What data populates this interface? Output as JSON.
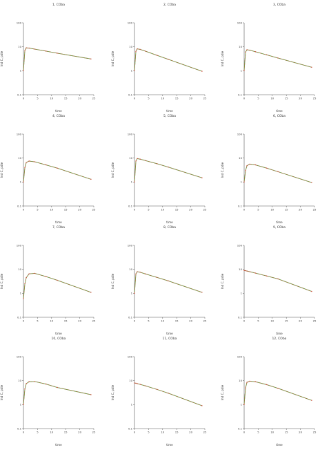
{
  "chart_data": [
    {
      "type": "line",
      "title": "1, COba",
      "xlabel": "time",
      "ylabel": "Ind C, pdie",
      "xticks": [
        "0",
        "5",
        "10",
        "15",
        "20",
        "25"
      ],
      "yticks": [
        "0.1",
        "1",
        "10",
        "100"
      ],
      "xlim": [
        0,
        25
      ],
      "ylim_log": [
        0.1,
        100
      ],
      "y_scale": "log",
      "series": [
        {
          "x": [
            0,
            0.5,
            1,
            2,
            4,
            8,
            12,
            24
          ],
          "y": [
            1.0,
            7.0,
            9.0,
            8.8,
            8.0,
            6.6,
            5.4,
            3.1
          ]
        }
      ]
    },
    {
      "type": "line",
      "title": "2, COba",
      "xlabel": "time",
      "ylabel": "Ind C, pdie",
      "xticks": [
        "0",
        "5",
        "10",
        "15",
        "20",
        "25"
      ],
      "yticks": [
        "0.1",
        "1",
        "10",
        "100"
      ],
      "xlim": [
        0,
        25
      ],
      "ylim_log": [
        0.1,
        100
      ],
      "y_scale": "log",
      "series": [
        {
          "x": [
            0,
            0.5,
            1,
            2,
            4,
            8,
            12,
            24
          ],
          "y": [
            1.0,
            6.5,
            8.2,
            7.8,
            6.5,
            4.4,
            3.0,
            0.95
          ]
        }
      ]
    },
    {
      "type": "line",
      "title": "3, COba",
      "xlabel": "time",
      "ylabel": "Ind C, pdie",
      "xticks": [
        "0",
        "5",
        "10",
        "15",
        "20",
        "25"
      ],
      "yticks": [
        "0.1",
        "1",
        "10",
        "100"
      ],
      "xlim": [
        0,
        25
      ],
      "ylim_log": [
        0.1,
        100
      ],
      "y_scale": "log",
      "series": [
        {
          "x": [
            0,
            0.5,
            1,
            2,
            4,
            8,
            12,
            24
          ],
          "y": [
            1.0,
            6.0,
            7.5,
            7.2,
            6.2,
            4.6,
            3.4,
            1.4
          ]
        }
      ]
    },
    {
      "type": "line",
      "title": "4, COba",
      "xlabel": "time",
      "ylabel": "Ind C, pdie",
      "xticks": [
        "0",
        "5",
        "10",
        "15",
        "20",
        "25"
      ],
      "yticks": [
        "0.1",
        "1",
        "10",
        "100"
      ],
      "xlim": [
        0,
        25
      ],
      "ylim_log": [
        0.1,
        100
      ],
      "y_scale": "log",
      "series": [
        {
          "x": [
            0,
            0.5,
            1,
            2,
            4,
            8,
            12,
            24
          ],
          "y": [
            1.0,
            4.0,
            6.5,
            7.5,
            7.0,
            5.2,
            3.8,
            1.3
          ]
        }
      ]
    },
    {
      "type": "line",
      "title": "5, COba",
      "xlabel": "time",
      "ylabel": "Ind C, pdie",
      "xticks": [
        "0",
        "5",
        "10",
        "15",
        "20",
        "25"
      ],
      "yticks": [
        "0.1",
        "1",
        "10",
        "100"
      ],
      "xlim": [
        0,
        25
      ],
      "ylim_log": [
        0.1,
        100
      ],
      "y_scale": "log",
      "series": [
        {
          "x": [
            0,
            0.5,
            1,
            2,
            4,
            8,
            12,
            24
          ],
          "y": [
            1.0,
            7.5,
            9.5,
            9.0,
            7.8,
            5.8,
            4.2,
            1.5
          ]
        }
      ]
    },
    {
      "type": "line",
      "title": "6, COba",
      "xlabel": "time",
      "ylabel": "Ind C, pdie",
      "xticks": [
        "0",
        "5",
        "10",
        "15",
        "20",
        "25"
      ],
      "yticks": [
        "0.1",
        "1",
        "10",
        "100"
      ],
      "xlim": [
        0,
        25
      ],
      "ylim_log": [
        0.1,
        100
      ],
      "y_scale": "log",
      "series": [
        {
          "x": [
            0,
            0.5,
            1,
            2,
            4,
            8,
            12,
            24
          ],
          "y": [
            1.0,
            3.0,
            4.8,
            5.6,
            5.2,
            3.8,
            2.7,
            0.95
          ]
        }
      ]
    },
    {
      "type": "line",
      "title": "7, COba",
      "xlabel": "time",
      "ylabel": "Ind C, pdie",
      "xticks": [
        "0",
        "5",
        "10",
        "15",
        "20",
        "25"
      ],
      "yticks": [
        "0.1",
        "1",
        "10",
        "100"
      ],
      "xlim": [
        0,
        25
      ],
      "ylim_log": [
        0.1,
        100
      ],
      "y_scale": "log",
      "series": [
        {
          "x": [
            0,
            0.5,
            1,
            2,
            4,
            8,
            12,
            24
          ],
          "y": [
            0.6,
            2.5,
            4.5,
            6.5,
            6.8,
            5.0,
            3.5,
            1.1
          ]
        }
      ]
    },
    {
      "type": "line",
      "title": "8, COba",
      "xlabel": "time",
      "ylabel": "Ind C, pdie",
      "xticks": [
        "0",
        "5",
        "10",
        "15",
        "20",
        "25"
      ],
      "yticks": [
        "0.1",
        "1",
        "10",
        "100"
      ],
      "xlim": [
        0,
        25
      ],
      "ylim_log": [
        0.1,
        100
      ],
      "y_scale": "log",
      "series": [
        {
          "x": [
            0,
            0.5,
            1,
            2,
            4,
            8,
            12,
            24
          ],
          "y": [
            1.0,
            6.5,
            8.0,
            7.6,
            6.4,
            4.6,
            3.3,
            1.1
          ]
        }
      ]
    },
    {
      "type": "line",
      "title": "9, COba",
      "xlabel": "time",
      "ylabel": "Ind C, pdie",
      "xticks": [
        "0",
        "5",
        "10",
        "15",
        "20",
        "25"
      ],
      "yticks": [
        "0.1",
        "1",
        "10",
        "100"
      ],
      "xlim": [
        0,
        25
      ],
      "ylim_log": [
        0.1,
        100
      ],
      "y_scale": "log",
      "series": [
        {
          "x": [
            0,
            0.5,
            1,
            2,
            4,
            8,
            12,
            24
          ],
          "y": [
            9.0,
            8.8,
            8.5,
            8.0,
            7.0,
            5.3,
            4.0,
            1.2
          ]
        }
      ]
    },
    {
      "type": "line",
      "title": "10, COba",
      "xlabel": "time",
      "ylabel": "Ind C, pdie",
      "xticks": [
        "0",
        "5",
        "10",
        "15",
        "20",
        "25"
      ],
      "yticks": [
        "0.1",
        "1",
        "10",
        "100"
      ],
      "xlim": [
        0,
        25
      ],
      "ylim_log": [
        0.1,
        100
      ],
      "y_scale": "log",
      "series": [
        {
          "x": [
            0,
            0.5,
            1,
            2,
            4,
            8,
            12,
            24
          ],
          "y": [
            1.0,
            4.5,
            7.5,
            9.0,
            9.2,
            7.2,
            5.2,
            2.6
          ]
        }
      ]
    },
    {
      "type": "line",
      "title": "11, COba",
      "xlabel": "time",
      "ylabel": "Ind C, pdie",
      "xticks": [
        "0",
        "5",
        "10",
        "15",
        "20",
        "25"
      ],
      "yticks": [
        "0.1",
        "1",
        "10",
        "100"
      ],
      "xlim": [
        0,
        25
      ],
      "ylim_log": [
        0.1,
        100
      ],
      "y_scale": "log",
      "series": [
        {
          "x": [
            0,
            0.5,
            1,
            2,
            4,
            8,
            12,
            24
          ],
          "y": [
            8.0,
            7.8,
            7.5,
            7.0,
            6.0,
            4.3,
            3.0,
            0.9
          ]
        }
      ]
    },
    {
      "type": "line",
      "title": "12, COba",
      "xlabel": "time",
      "ylabel": "Ind C, pdie",
      "xticks": [
        "0",
        "5",
        "10",
        "15",
        "20",
        "25"
      ],
      "yticks": [
        "0.1",
        "1",
        "10",
        "100"
      ],
      "xlim": [
        0,
        25
      ],
      "ylim_log": [
        0.1,
        100
      ],
      "y_scale": "log",
      "series": [
        {
          "x": [
            0,
            0.5,
            1,
            2,
            4,
            8,
            12,
            24
          ],
          "y": [
            1.0,
            5.0,
            8.5,
            9.5,
            9.0,
            6.8,
            4.8,
            1.5
          ]
        }
      ]
    }
  ],
  "colors": {
    "line_green": "#58a845",
    "line_red": "#d24b3c",
    "points": "#d24b3c",
    "axis": "#555555",
    "text": "#333333"
  }
}
